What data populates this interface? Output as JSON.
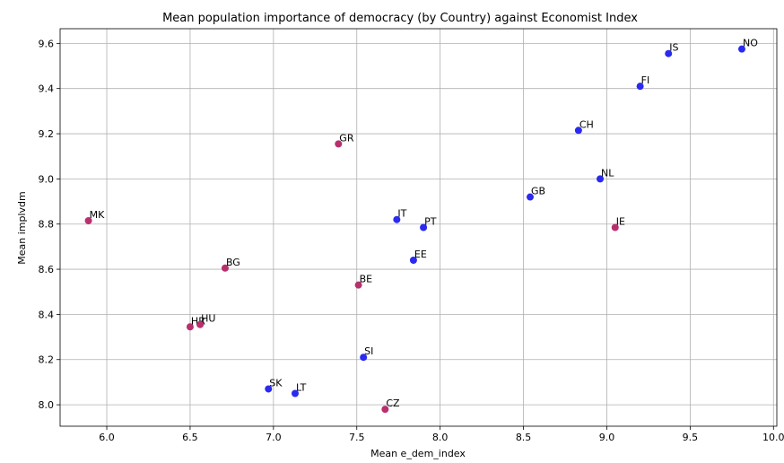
{
  "chart_data": {
    "type": "scatter",
    "title": "Mean population importance of democracy (by Country) against Economist Index",
    "xlabel": "Mean e_dem_index",
    "ylabel": "Mean implvdm",
    "xlim": [
      5.72,
      10.02
    ],
    "ylim": [
      7.905,
      9.665
    ],
    "xticks": [
      "6.0",
      "6.5",
      "7.0",
      "7.5",
      "8.0",
      "8.5",
      "9.0",
      "9.5",
      "10.0"
    ],
    "yticks": [
      "8.0",
      "8.2",
      "8.4",
      "8.6",
      "8.8",
      "9.0",
      "9.2",
      "9.4",
      "9.6"
    ],
    "grid": true,
    "colors": {
      "blue": "#2a2af0",
      "magenta": "#b8306e"
    },
    "points": [
      {
        "label": "NO",
        "x": 9.81,
        "y": 9.575,
        "color": "blue"
      },
      {
        "label": "IS",
        "x": 9.37,
        "y": 9.555,
        "color": "blue"
      },
      {
        "label": "FI",
        "x": 9.2,
        "y": 9.41,
        "color": "blue"
      },
      {
        "label": "CH",
        "x": 8.83,
        "y": 9.215,
        "color": "blue"
      },
      {
        "label": "NL",
        "x": 8.96,
        "y": 9.0,
        "color": "blue"
      },
      {
        "label": "GB",
        "x": 8.54,
        "y": 8.92,
        "color": "blue"
      },
      {
        "label": "IE",
        "x": 9.05,
        "y": 8.785,
        "color": "magenta"
      },
      {
        "label": "GR",
        "x": 7.39,
        "y": 9.155,
        "color": "magenta"
      },
      {
        "label": "IT",
        "x": 7.74,
        "y": 8.82,
        "color": "blue"
      },
      {
        "label": "PT",
        "x": 7.9,
        "y": 8.785,
        "color": "blue"
      },
      {
        "label": "EE",
        "x": 7.84,
        "y": 8.64,
        "color": "blue"
      },
      {
        "label": "BE",
        "x": 7.51,
        "y": 8.53,
        "color": "magenta"
      },
      {
        "label": "MK",
        "x": 5.89,
        "y": 8.815,
        "color": "magenta"
      },
      {
        "label": "BG",
        "x": 6.71,
        "y": 8.605,
        "color": "magenta"
      },
      {
        "label": "HR",
        "x": 6.5,
        "y": 8.345,
        "color": "magenta"
      },
      {
        "label": "HU",
        "x": 6.56,
        "y": 8.355,
        "color": "magenta"
      },
      {
        "label": "SI",
        "x": 7.54,
        "y": 8.21,
        "color": "blue"
      },
      {
        "label": "SK",
        "x": 6.97,
        "y": 8.07,
        "color": "blue"
      },
      {
        "label": "LT",
        "x": 7.13,
        "y": 8.05,
        "color": "blue"
      },
      {
        "label": "CZ",
        "x": 7.67,
        "y": 7.98,
        "color": "magenta"
      }
    ]
  }
}
